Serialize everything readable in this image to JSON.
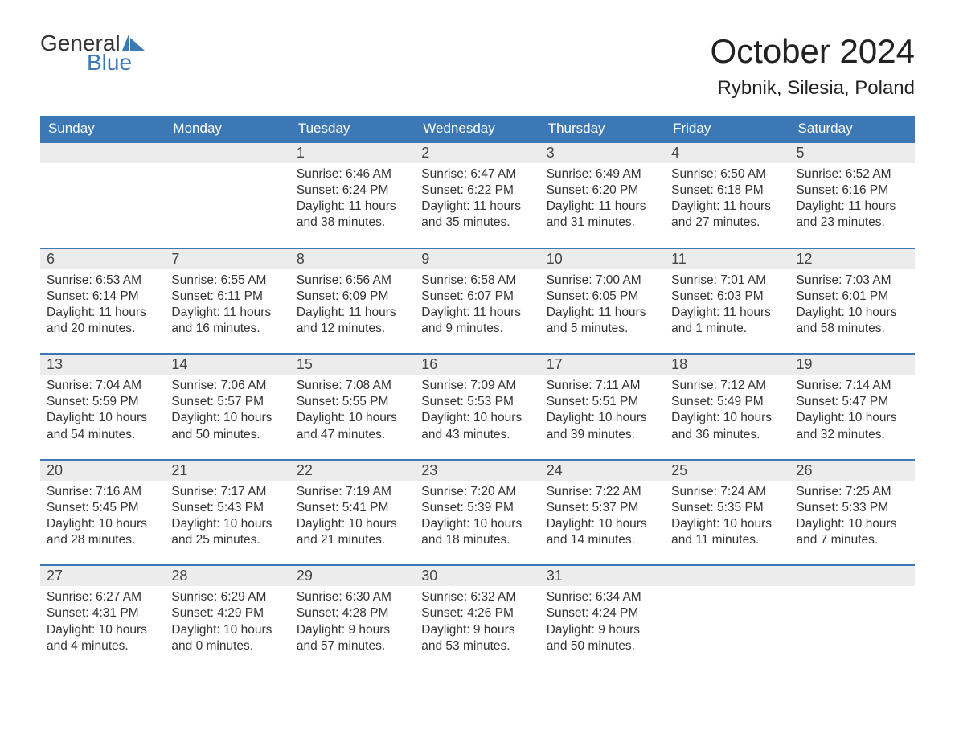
{
  "logo": {
    "line1": "General",
    "line2": "Blue"
  },
  "title": "October 2024",
  "location": "Rybnik, Silesia, Poland",
  "colors": {
    "header_bg": "#3b78b5",
    "header_text": "#ffffff",
    "daynum_bg": "#ececec",
    "daynum_border": "#3b78b5",
    "body_text": "#333333",
    "logo_blue": "#3b78b5"
  },
  "typography": {
    "title_fontsize": 42,
    "location_fontsize": 24,
    "weekday_fontsize": 17,
    "daynum_fontsize": 18,
    "cell_fontsize": 15.5
  },
  "weekdays": [
    "Sunday",
    "Monday",
    "Tuesday",
    "Wednesday",
    "Thursday",
    "Friday",
    "Saturday"
  ],
  "weeks": [
    [
      null,
      null,
      {
        "d": "1",
        "sr": "6:46 AM",
        "ss": "6:24 PM",
        "dl": "11 hours and 38 minutes."
      },
      {
        "d": "2",
        "sr": "6:47 AM",
        "ss": "6:22 PM",
        "dl": "11 hours and 35 minutes."
      },
      {
        "d": "3",
        "sr": "6:49 AM",
        "ss": "6:20 PM",
        "dl": "11 hours and 31 minutes."
      },
      {
        "d": "4",
        "sr": "6:50 AM",
        "ss": "6:18 PM",
        "dl": "11 hours and 27 minutes."
      },
      {
        "d": "5",
        "sr": "6:52 AM",
        "ss": "6:16 PM",
        "dl": "11 hours and 23 minutes."
      }
    ],
    [
      {
        "d": "6",
        "sr": "6:53 AM",
        "ss": "6:14 PM",
        "dl": "11 hours and 20 minutes."
      },
      {
        "d": "7",
        "sr": "6:55 AM",
        "ss": "6:11 PM",
        "dl": "11 hours and 16 minutes."
      },
      {
        "d": "8",
        "sr": "6:56 AM",
        "ss": "6:09 PM",
        "dl": "11 hours and 12 minutes."
      },
      {
        "d": "9",
        "sr": "6:58 AM",
        "ss": "6:07 PM",
        "dl": "11 hours and 9 minutes."
      },
      {
        "d": "10",
        "sr": "7:00 AM",
        "ss": "6:05 PM",
        "dl": "11 hours and 5 minutes."
      },
      {
        "d": "11",
        "sr": "7:01 AM",
        "ss": "6:03 PM",
        "dl": "11 hours and 1 minute."
      },
      {
        "d": "12",
        "sr": "7:03 AM",
        "ss": "6:01 PM",
        "dl": "10 hours and 58 minutes."
      }
    ],
    [
      {
        "d": "13",
        "sr": "7:04 AM",
        "ss": "5:59 PM",
        "dl": "10 hours and 54 minutes."
      },
      {
        "d": "14",
        "sr": "7:06 AM",
        "ss": "5:57 PM",
        "dl": "10 hours and 50 minutes."
      },
      {
        "d": "15",
        "sr": "7:08 AM",
        "ss": "5:55 PM",
        "dl": "10 hours and 47 minutes."
      },
      {
        "d": "16",
        "sr": "7:09 AM",
        "ss": "5:53 PM",
        "dl": "10 hours and 43 minutes."
      },
      {
        "d": "17",
        "sr": "7:11 AM",
        "ss": "5:51 PM",
        "dl": "10 hours and 39 minutes."
      },
      {
        "d": "18",
        "sr": "7:12 AM",
        "ss": "5:49 PM",
        "dl": "10 hours and 36 minutes."
      },
      {
        "d": "19",
        "sr": "7:14 AM",
        "ss": "5:47 PM",
        "dl": "10 hours and 32 minutes."
      }
    ],
    [
      {
        "d": "20",
        "sr": "7:16 AM",
        "ss": "5:45 PM",
        "dl": "10 hours and 28 minutes."
      },
      {
        "d": "21",
        "sr": "7:17 AM",
        "ss": "5:43 PM",
        "dl": "10 hours and 25 minutes."
      },
      {
        "d": "22",
        "sr": "7:19 AM",
        "ss": "5:41 PM",
        "dl": "10 hours and 21 minutes."
      },
      {
        "d": "23",
        "sr": "7:20 AM",
        "ss": "5:39 PM",
        "dl": "10 hours and 18 minutes."
      },
      {
        "d": "24",
        "sr": "7:22 AM",
        "ss": "5:37 PM",
        "dl": "10 hours and 14 minutes."
      },
      {
        "d": "25",
        "sr": "7:24 AM",
        "ss": "5:35 PM",
        "dl": "10 hours and 11 minutes."
      },
      {
        "d": "26",
        "sr": "7:25 AM",
        "ss": "5:33 PM",
        "dl": "10 hours and 7 minutes."
      }
    ],
    [
      {
        "d": "27",
        "sr": "6:27 AM",
        "ss": "4:31 PM",
        "dl": "10 hours and 4 minutes."
      },
      {
        "d": "28",
        "sr": "6:29 AM",
        "ss": "4:29 PM",
        "dl": "10 hours and 0 minutes."
      },
      {
        "d": "29",
        "sr": "6:30 AM",
        "ss": "4:28 PM",
        "dl": "9 hours and 57 minutes."
      },
      {
        "d": "30",
        "sr": "6:32 AM",
        "ss": "4:26 PM",
        "dl": "9 hours and 53 minutes."
      },
      {
        "d": "31",
        "sr": "6:34 AM",
        "ss": "4:24 PM",
        "dl": "9 hours and 50 minutes."
      },
      null,
      null
    ]
  ],
  "labels": {
    "sunrise": "Sunrise:",
    "sunset": "Sunset:",
    "daylight": "Daylight:"
  }
}
